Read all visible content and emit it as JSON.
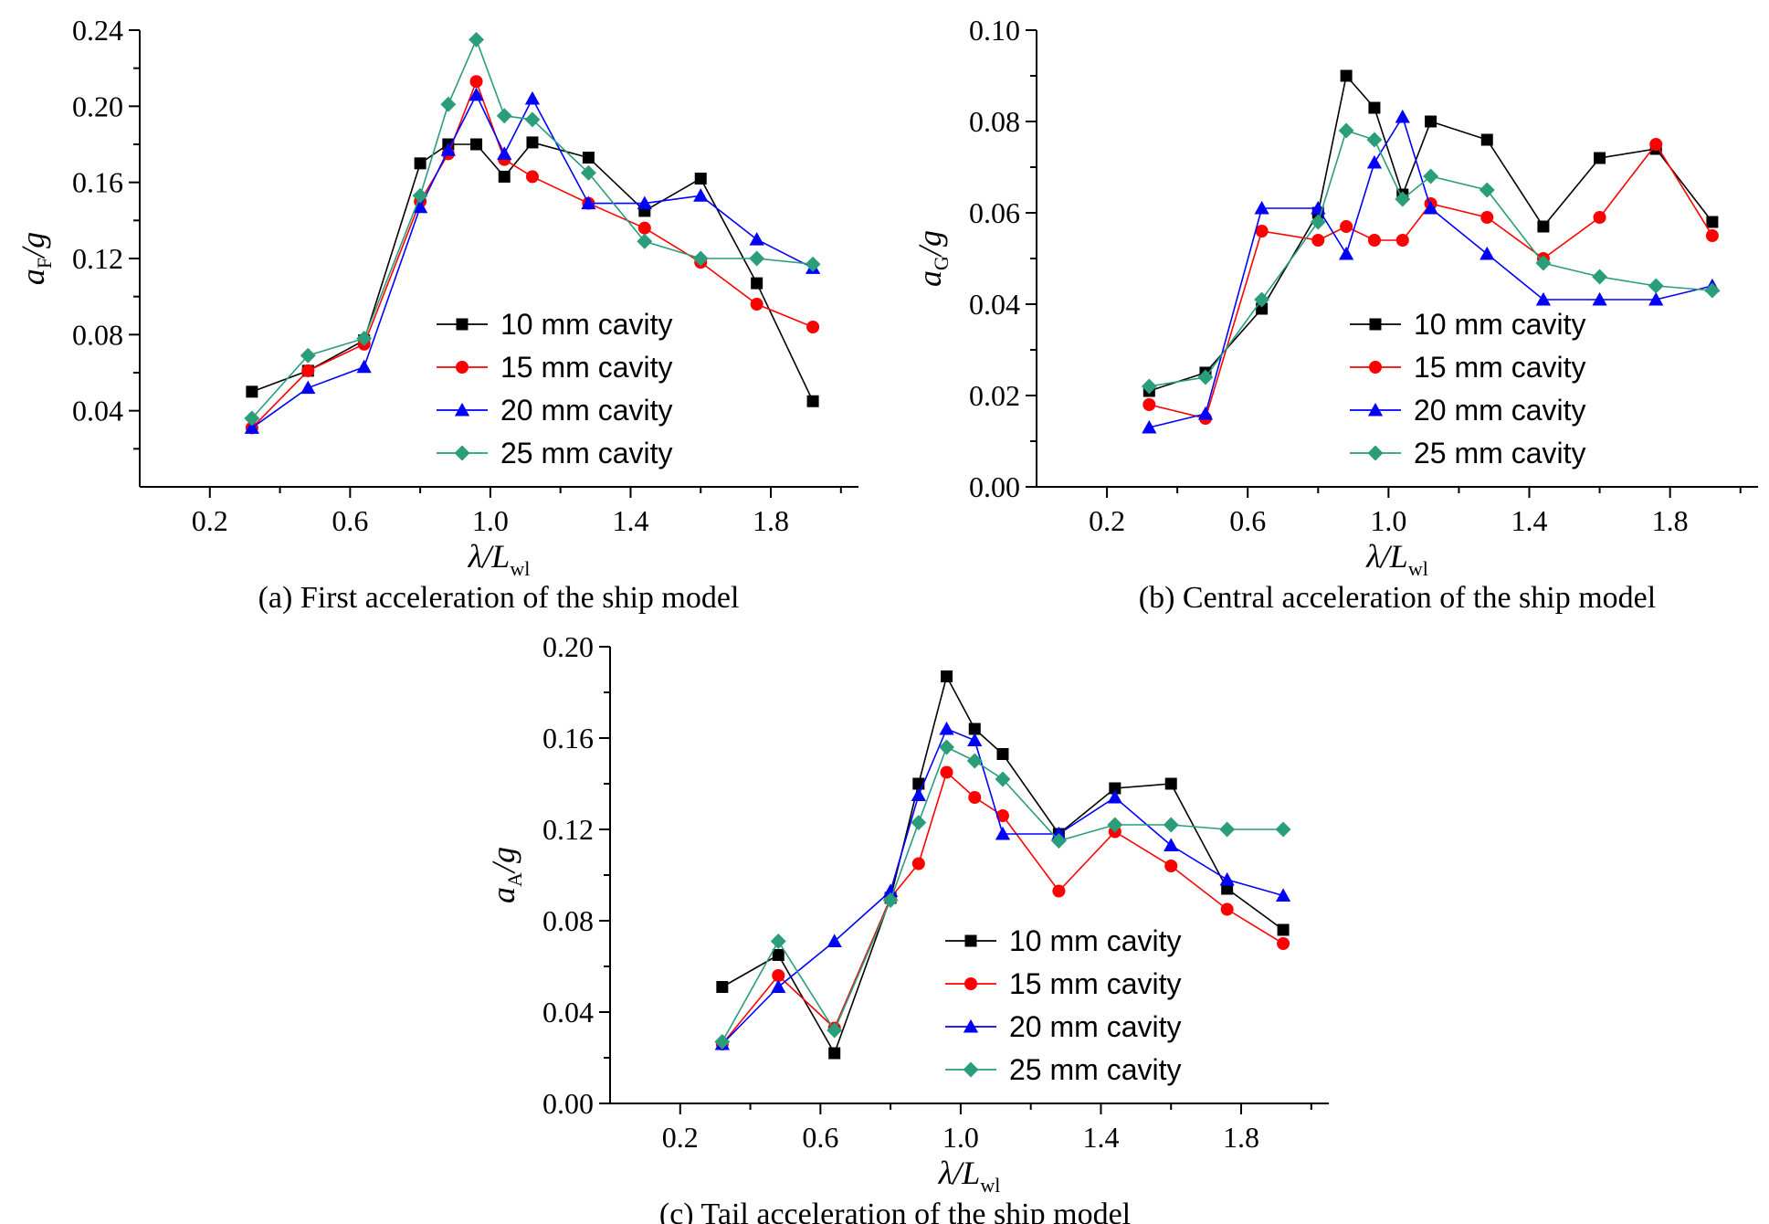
{
  "chart_data": [
    {
      "type": "line",
      "caption": "(a) First acceleration of the ship model",
      "ylabel": {
        "main": "a",
        "sub": "F",
        "suffix": "/g"
      },
      "xlabel": {
        "main": "λ/L",
        "sub": "wl"
      },
      "xlim": [
        0.0,
        2.05
      ],
      "ylim": [
        0.0,
        0.24
      ],
      "xticks": [
        "0.2",
        "0.6",
        "1.0",
        "1.4",
        "1.8"
      ],
      "yticks": [
        "0.04",
        "0.08",
        "0.12",
        "0.16",
        "0.20",
        "0.24"
      ],
      "legend_position": "bottom-right",
      "x": [
        0.32,
        0.48,
        0.64,
        0.8,
        0.88,
        0.96,
        1.04,
        1.12,
        1.28,
        1.44,
        1.6,
        1.76,
        1.92
      ],
      "series": [
        {
          "name": "10 mm cavity",
          "color": "#000000",
          "marker": "square",
          "values": [
            0.05,
            0.061,
            0.077,
            0.17,
            0.18,
            0.18,
            0.163,
            0.181,
            0.173,
            0.145,
            0.162,
            0.107,
            0.045
          ]
        },
        {
          "name": "15 mm cavity",
          "color": "#ff0000",
          "marker": "circle",
          "values": [
            0.031,
            0.061,
            0.075,
            0.15,
            0.175,
            0.213,
            0.172,
            0.163,
            0.149,
            0.136,
            0.118,
            0.096,
            0.084
          ]
        },
        {
          "name": "20 mm cavity",
          "color": "#0000ff",
          "marker": "triangle",
          "values": [
            0.031,
            0.052,
            0.063,
            0.147,
            0.177,
            0.206,
            0.175,
            0.204,
            0.149,
            0.149,
            0.153,
            0.13,
            0.115
          ]
        },
        {
          "name": "25 mm cavity",
          "color": "#2a9d7a",
          "marker": "diamond",
          "values": [
            0.036,
            0.069,
            0.078,
            0.153,
            0.201,
            0.235,
            0.195,
            0.193,
            0.165,
            0.129,
            0.12,
            0.12,
            0.117
          ]
        }
      ]
    },
    {
      "type": "line",
      "caption": "(b) Central acceleration of the ship model",
      "ylabel": {
        "main": "a",
        "sub": "G",
        "suffix": "/g"
      },
      "xlabel": {
        "main": "λ/L",
        "sub": "wl"
      },
      "xlim": [
        0.0,
        2.05
      ],
      "ylim": [
        0.0,
        0.1
      ],
      "xticks": [
        "0.2",
        "0.6",
        "1.0",
        "1.4",
        "1.8"
      ],
      "yticks": [
        "0.00",
        "0.02",
        "0.04",
        "0.06",
        "0.08",
        "0.10"
      ],
      "legend_position": "bottom-right",
      "x": [
        0.32,
        0.48,
        0.64,
        0.8,
        0.88,
        0.96,
        1.04,
        1.12,
        1.28,
        1.44,
        1.6,
        1.76,
        1.92
      ],
      "series": [
        {
          "name": "10 mm cavity",
          "color": "#000000",
          "marker": "square",
          "values": [
            0.021,
            0.025,
            0.039,
            0.06,
            0.09,
            0.083,
            0.064,
            0.08,
            0.076,
            0.057,
            0.072,
            0.074,
            0.058
          ]
        },
        {
          "name": "15 mm cavity",
          "color": "#ff0000",
          "marker": "circle",
          "values": [
            0.018,
            0.015,
            0.056,
            0.054,
            0.057,
            0.054,
            0.054,
            0.062,
            0.059,
            0.05,
            0.059,
            0.075,
            0.055
          ]
        },
        {
          "name": "20 mm cavity",
          "color": "#0000ff",
          "marker": "triangle",
          "values": [
            0.013,
            0.016,
            0.061,
            0.061,
            0.051,
            0.071,
            0.081,
            0.061,
            0.051,
            0.041,
            0.041,
            0.041,
            0.044
          ]
        },
        {
          "name": "25 mm cavity",
          "color": "#2a9d7a",
          "marker": "diamond",
          "values": [
            0.022,
            0.024,
            0.041,
            0.058,
            0.078,
            0.076,
            0.063,
            0.068,
            0.065,
            0.049,
            0.046,
            0.044,
            0.043
          ]
        }
      ]
    },
    {
      "type": "line",
      "caption": "(c) Tail acceleration of the ship model",
      "ylabel": {
        "main": "a",
        "sub": "A",
        "suffix": "/g"
      },
      "xlabel": {
        "main": "λ/L",
        "sub": "wl"
      },
      "xlim": [
        0.0,
        2.05
      ],
      "ylim": [
        0.0,
        0.2
      ],
      "xticks": [
        "0.2",
        "0.6",
        "1.0",
        "1.4",
        "1.8"
      ],
      "yticks": [
        "0.00",
        "0.04",
        "0.08",
        "0.12",
        "0.16",
        "0.20"
      ],
      "legend_position": "bottom-right",
      "x": [
        0.32,
        0.48,
        0.64,
        0.8,
        0.88,
        0.96,
        1.04,
        1.12,
        1.28,
        1.44,
        1.6,
        1.76,
        1.92
      ],
      "series": [
        {
          "name": "10 mm cavity",
          "color": "#000000",
          "marker": "square",
          "values": [
            0.051,
            0.065,
            0.022,
            0.09,
            0.14,
            0.187,
            0.164,
            0.153,
            0.118,
            0.138,
            0.14,
            0.094,
            0.076
          ]
        },
        {
          "name": "15 mm cavity",
          "color": "#ff0000",
          "marker": "circle",
          "values": [
            0.026,
            0.056,
            0.033,
            0.09,
            0.105,
            0.145,
            0.134,
            0.126,
            0.093,
            0.119,
            0.104,
            0.085,
            0.07
          ]
        },
        {
          "name": "20 mm cavity",
          "color": "#0000ff",
          "marker": "triangle",
          "values": [
            0.026,
            0.051,
            0.071,
            0.093,
            0.135,
            0.164,
            0.159,
            0.118,
            0.118,
            0.134,
            0.113,
            0.098,
            0.091
          ]
        },
        {
          "name": "25 mm cavity",
          "color": "#2a9d7a",
          "marker": "diamond",
          "values": [
            0.027,
            0.071,
            0.032,
            0.089,
            0.123,
            0.156,
            0.15,
            0.142,
            0.115,
            0.122,
            0.122,
            0.12,
            0.12
          ]
        }
      ]
    }
  ]
}
